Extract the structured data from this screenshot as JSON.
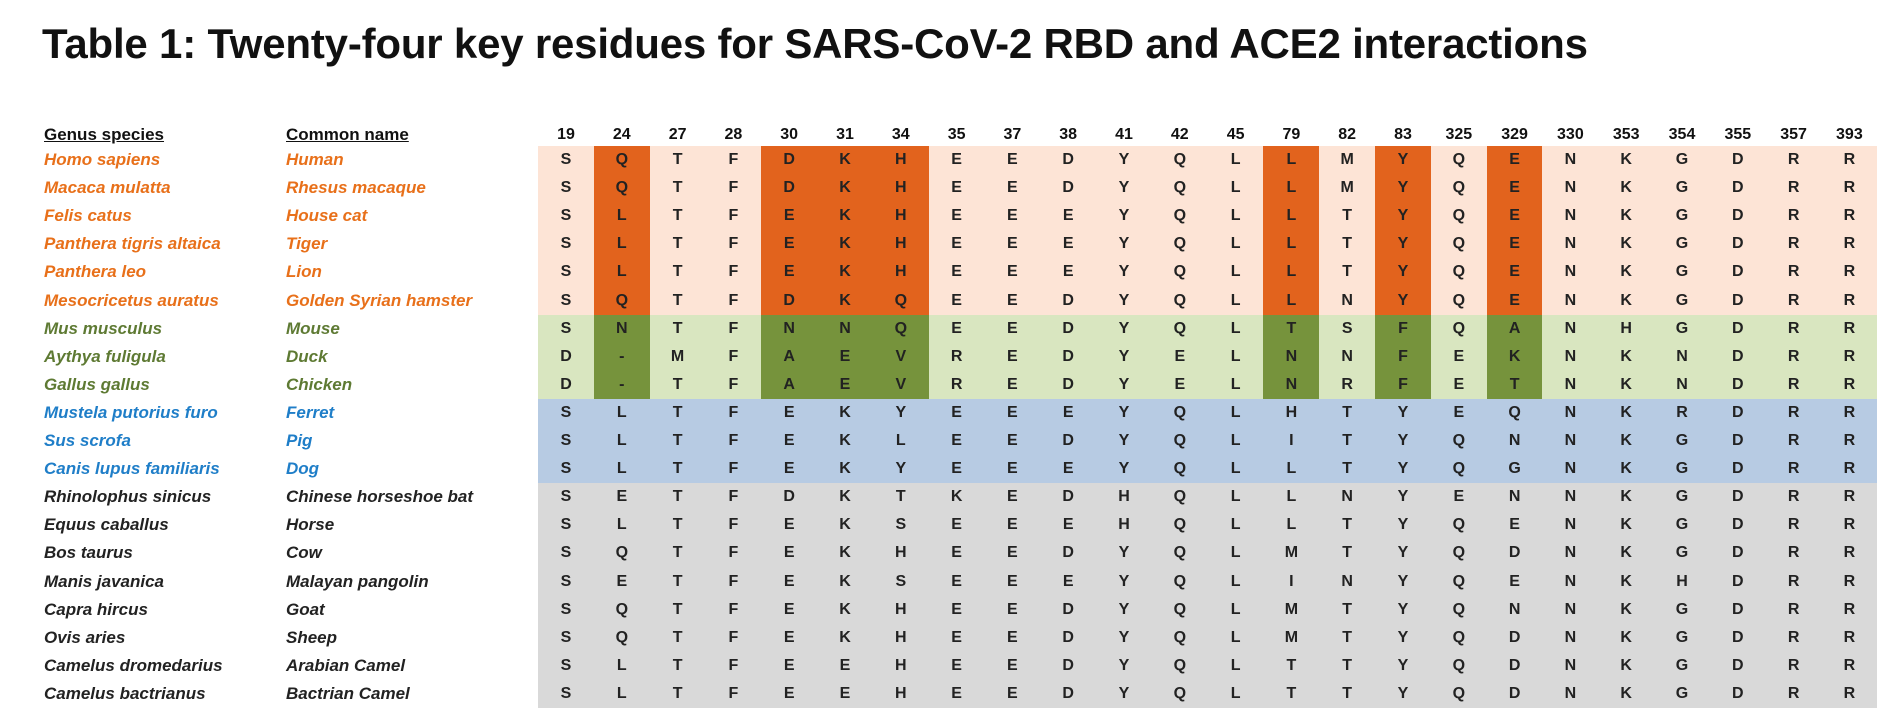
{
  "title": "Table 1: Twenty-four key residues for SARS-CoV-2 RBD and ACE2 interactions",
  "headers": {
    "genus_species": "Genus species",
    "common_name": "Common name"
  },
  "positions": [
    "19",
    "24",
    "27",
    "28",
    "30",
    "31",
    "34",
    "35",
    "37",
    "38",
    "41",
    "42",
    "45",
    "79",
    "82",
    "83",
    "325",
    "329",
    "330",
    "353",
    "354",
    "355",
    "357",
    "393"
  ],
  "colors": {
    "orange_text": "#e8701a",
    "green_text": "#5e7a33",
    "blue_text": "#1f7ec8",
    "black_text": "#222222",
    "orange_bg": "#fde4d6",
    "green_bg": "#d9e6c0",
    "blue_bg": "#b7cbe3",
    "gray_bg": "#d9d9d9",
    "orange_highlight": "#e2631d",
    "green_highlight": "#76933c"
  },
  "groups": [
    {
      "id": "orange",
      "text_color": "#e8701a",
      "bg": "#fde4d6",
      "highlight": "#e2631d",
      "highlight_columns": [
        1,
        4,
        5,
        6,
        13,
        15,
        17
      ],
      "rows": [
        0,
        1,
        2,
        3,
        4,
        5
      ]
    },
    {
      "id": "green",
      "text_color": "#5e7a33",
      "bg": "#d9e6c0",
      "highlight": "#76933c",
      "highlight_columns": [
        1,
        4,
        5,
        6,
        13,
        15,
        17
      ],
      "rows": [
        6,
        7,
        8
      ]
    },
    {
      "id": "blue",
      "text_color": "#1f7ec8",
      "bg": "#b7cbe3",
      "highlight": "",
      "highlight_columns": [],
      "rows": [
        9,
        10,
        11
      ]
    },
    {
      "id": "black",
      "text_color": "#222222",
      "bg": "#d9d9d9",
      "highlight": "",
      "highlight_columns": [],
      "rows": [
        12,
        13,
        14,
        15,
        16,
        17,
        18,
        19
      ]
    }
  ],
  "species": [
    {
      "genus": "Homo sapiens",
      "common": "Human",
      "residues": [
        "S",
        "Q",
        "T",
        "F",
        "D",
        "K",
        "H",
        "E",
        "E",
        "D",
        "Y",
        "Q",
        "L",
        "L",
        "M",
        "Y",
        "Q",
        "E",
        "N",
        "K",
        "G",
        "D",
        "R",
        "R"
      ]
    },
    {
      "genus": "Macaca mulatta",
      "common": "Rhesus macaque",
      "residues": [
        "S",
        "Q",
        "T",
        "F",
        "D",
        "K",
        "H",
        "E",
        "E",
        "D",
        "Y",
        "Q",
        "L",
        "L",
        "M",
        "Y",
        "Q",
        "E",
        "N",
        "K",
        "G",
        "D",
        "R",
        "R"
      ]
    },
    {
      "genus": "Felis catus",
      "common": "House cat",
      "residues": [
        "S",
        "L",
        "T",
        "F",
        "E",
        "K",
        "H",
        "E",
        "E",
        "E",
        "Y",
        "Q",
        "L",
        "L",
        "T",
        "Y",
        "Q",
        "E",
        "N",
        "K",
        "G",
        "D",
        "R",
        "R"
      ]
    },
    {
      "genus": "Panthera tigris altaica",
      "common": "Tiger",
      "residues": [
        "S",
        "L",
        "T",
        "F",
        "E",
        "K",
        "H",
        "E",
        "E",
        "E",
        "Y",
        "Q",
        "L",
        "L",
        "T",
        "Y",
        "Q",
        "E",
        "N",
        "K",
        "G",
        "D",
        "R",
        "R"
      ]
    },
    {
      "genus": "Panthera leo",
      "common": "Lion",
      "residues": [
        "S",
        "L",
        "T",
        "F",
        "E",
        "K",
        "H",
        "E",
        "E",
        "E",
        "Y",
        "Q",
        "L",
        "L",
        "T",
        "Y",
        "Q",
        "E",
        "N",
        "K",
        "G",
        "D",
        "R",
        "R"
      ]
    },
    {
      "genus": "Mesocricetus auratus",
      "common": "Golden Syrian hamster",
      "residues": [
        "S",
        "Q",
        "T",
        "F",
        "D",
        "K",
        "Q",
        "E",
        "E",
        "D",
        "Y",
        "Q",
        "L",
        "L",
        "N",
        "Y",
        "Q",
        "E",
        "N",
        "K",
        "G",
        "D",
        "R",
        "R"
      ]
    },
    {
      "genus": "Mus musculus",
      "common": "Mouse",
      "residues": [
        "S",
        "N",
        "T",
        "F",
        "N",
        "N",
        "Q",
        "E",
        "E",
        "D",
        "Y",
        "Q",
        "L",
        "T",
        "S",
        "F",
        "Q",
        "A",
        "N",
        "H",
        "G",
        "D",
        "R",
        "R"
      ]
    },
    {
      "genus": "Aythya fuligula",
      "common": "Duck",
      "residues": [
        "D",
        "-",
        "M",
        "F",
        "A",
        "E",
        "V",
        "R",
        "E",
        "D",
        "Y",
        "E",
        "L",
        "N",
        "N",
        "F",
        "E",
        "K",
        "N",
        "K",
        "N",
        "D",
        "R",
        "R"
      ]
    },
    {
      "genus": "Gallus gallus",
      "common": "Chicken",
      "residues": [
        "D",
        "-",
        "T",
        "F",
        "A",
        "E",
        "V",
        "R",
        "E",
        "D",
        "Y",
        "E",
        "L",
        "N",
        "R",
        "F",
        "E",
        "T",
        "N",
        "K",
        "N",
        "D",
        "R",
        "R"
      ]
    },
    {
      "genus": "Mustela putorius furo",
      "common": "Ferret",
      "residues": [
        "S",
        "L",
        "T",
        "F",
        "E",
        "K",
        "Y",
        "E",
        "E",
        "E",
        "Y",
        "Q",
        "L",
        "H",
        "T",
        "Y",
        "E",
        "Q",
        "N",
        "K",
        "R",
        "D",
        "R",
        "R"
      ]
    },
    {
      "genus": "Sus scrofa",
      "common": "Pig",
      "residues": [
        "S",
        "L",
        "T",
        "F",
        "E",
        "K",
        "L",
        "E",
        "E",
        "D",
        "Y",
        "Q",
        "L",
        "I",
        "T",
        "Y",
        "Q",
        "N",
        "N",
        "K",
        "G",
        "D",
        "R",
        "R"
      ]
    },
    {
      "genus": "Canis lupus familiaris",
      "common": "Dog",
      "residues": [
        "S",
        "L",
        "T",
        "F",
        "E",
        "K",
        "Y",
        "E",
        "E",
        "E",
        "Y",
        "Q",
        "L",
        "L",
        "T",
        "Y",
        "Q",
        "G",
        "N",
        "K",
        "G",
        "D",
        "R",
        "R"
      ]
    },
    {
      "genus": "Rhinolophus  sinicus",
      "common": "Chinese horseshoe bat",
      "residues": [
        "S",
        "E",
        "T",
        "F",
        "D",
        "K",
        "T",
        "K",
        "E",
        "D",
        "H",
        "Q",
        "L",
        "L",
        "N",
        "Y",
        "E",
        "N",
        "N",
        "K",
        "G",
        "D",
        "R",
        "R"
      ]
    },
    {
      "genus": "Equus caballus",
      "common": "Horse",
      "residues": [
        "S",
        "L",
        "T",
        "F",
        "E",
        "K",
        "S",
        "E",
        "E",
        "E",
        "H",
        "Q",
        "L",
        "L",
        "T",
        "Y",
        "Q",
        "E",
        "N",
        "K",
        "G",
        "D",
        "R",
        "R"
      ]
    },
    {
      "genus": "Bos taurus",
      "common": "Cow",
      "residues": [
        "S",
        "Q",
        "T",
        "F",
        "E",
        "K",
        "H",
        "E",
        "E",
        "D",
        "Y",
        "Q",
        "L",
        "M",
        "T",
        "Y",
        "Q",
        "D",
        "N",
        "K",
        "G",
        "D",
        "R",
        "R"
      ]
    },
    {
      "genus": "Manis javanica",
      "common": "Malayan pangolin",
      "residues": [
        "S",
        "E",
        "T",
        "F",
        "E",
        "K",
        "S",
        "E",
        "E",
        "E",
        "Y",
        "Q",
        "L",
        "I",
        "N",
        "Y",
        "Q",
        "E",
        "N",
        "K",
        "H",
        "D",
        "R",
        "R"
      ]
    },
    {
      "genus": "Capra hircus",
      "common": "Goat",
      "residues": [
        "S",
        "Q",
        "T",
        "F",
        "E",
        "K",
        "H",
        "E",
        "E",
        "D",
        "Y",
        "Q",
        "L",
        "M",
        "T",
        "Y",
        "Q",
        "N",
        "N",
        "K",
        "G",
        "D",
        "R",
        "R"
      ]
    },
    {
      "genus": "Ovis aries",
      "common": "Sheep",
      "residues": [
        "S",
        "Q",
        "T",
        "F",
        "E",
        "K",
        "H",
        "E",
        "E",
        "D",
        "Y",
        "Q",
        "L",
        "M",
        "T",
        "Y",
        "Q",
        "D",
        "N",
        "K",
        "G",
        "D",
        "R",
        "R"
      ]
    },
    {
      "genus": "Camelus dromedarius",
      "common": "Arabian Camel",
      "residues": [
        "S",
        "L",
        "T",
        "F",
        "E",
        "E",
        "H",
        "E",
        "E",
        "D",
        "Y",
        "Q",
        "L",
        "T",
        "T",
        "Y",
        "Q",
        "D",
        "N",
        "K",
        "G",
        "D",
        "R",
        "R"
      ]
    },
    {
      "genus": "Camelus bactrianus",
      "common": "Bactrian Camel",
      "residues": [
        "S",
        "L",
        "T",
        "F",
        "E",
        "E",
        "H",
        "E",
        "E",
        "D",
        "Y",
        "Q",
        "L",
        "T",
        "T",
        "Y",
        "Q",
        "D",
        "N",
        "K",
        "G",
        "D",
        "R",
        "R"
      ]
    }
  ]
}
